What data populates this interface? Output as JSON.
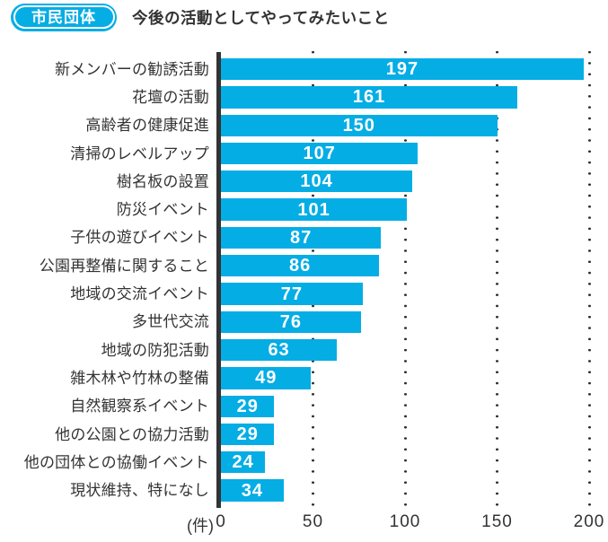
{
  "header": {
    "badge": "市民団体",
    "title": "今後の活動としてやってみたいこと"
  },
  "colors": {
    "bar": "#05ADE5",
    "badge": "#05ADE5",
    "text": "#333333",
    "axis_line": "#333333",
    "value_label": "#ffffff"
  },
  "chart_data": {
    "type": "bar",
    "orientation": "horizontal",
    "title": "市民団体 今後の活動としてやってみたいこと",
    "unit_label": "(件)",
    "categories": [
      "新メンバーの勧誘活動",
      "花壇の活動",
      "高齢者の健康促進",
      "清掃のレベルアップ",
      "樹名板の設置",
      "防災イベント",
      "子供の遊びイベント",
      "公園再整備に関すること",
      "地域の交流イベント",
      "多世代交流",
      "地域の防犯活動",
      "雑木林や竹林の整備",
      "自然観察系イベント",
      "他の公園との協力活動",
      "他の団体との協働イベント",
      "現状維持、特になし"
    ],
    "values": [
      197,
      161,
      150,
      107,
      104,
      101,
      87,
      86,
      77,
      76,
      63,
      49,
      29,
      29,
      24,
      34
    ],
    "xlim": [
      0,
      200
    ],
    "xticks": [
      0,
      50,
      100,
      150,
      200
    ],
    "grid": "dotted-vertical",
    "legend": "none"
  }
}
